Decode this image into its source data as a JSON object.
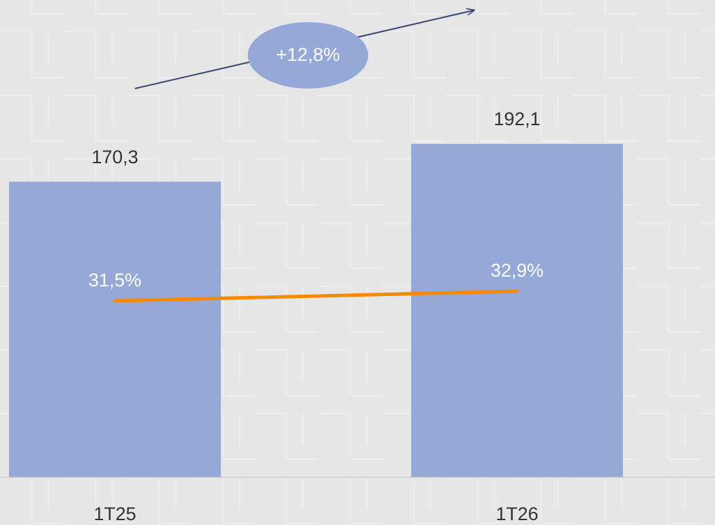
{
  "chart_data": {
    "type": "bar",
    "categories": [
      "1T25",
      "1T26"
    ],
    "series": [
      {
        "type": "bar",
        "color": "#95a8d8",
        "values": [
          170.3,
          192.1
        ],
        "value_labels": [
          "170,3",
          "192,1"
        ]
      },
      {
        "type": "line",
        "axis": "y2",
        "color": "#f58a07",
        "values": [
          31.5,
          32.9
        ],
        "value_labels": [
          "31,5%",
          "32,9%"
        ]
      }
    ],
    "ylim": [
      0,
      275
    ],
    "y2lim": [
      6,
      75
    ],
    "annotations": [
      "+12,8%"
    ]
  }
}
